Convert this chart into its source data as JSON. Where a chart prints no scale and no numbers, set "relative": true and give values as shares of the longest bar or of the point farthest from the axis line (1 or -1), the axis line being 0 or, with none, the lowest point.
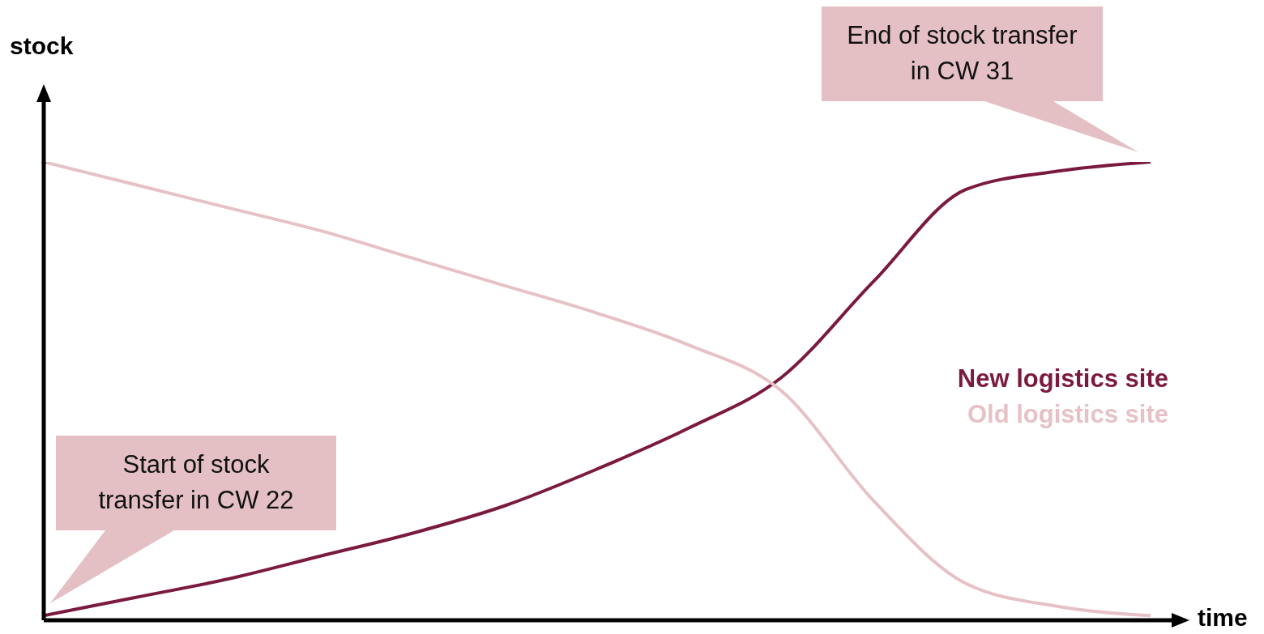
{
  "chart_data": {
    "type": "line",
    "relative": true,
    "xlabel": "time",
    "ylabel": "stock",
    "categories": [
      null,
      null,
      null,
      null,
      null,
      null,
      null,
      null,
      null,
      null,
      null,
      null,
      null
    ],
    "series": [
      {
        "name": "New logistics site",
        "color": "#7b1a3f",
        "values": [
          0.01,
          0.05,
          0.09,
          0.14,
          0.19,
          0.25,
          0.33,
          0.42,
          0.53,
          0.74,
          0.94,
          0.98,
          1.0
        ]
      },
      {
        "name": "Old logistics site",
        "color": "#e6c1c6",
        "values": [
          1.0,
          0.95,
          0.9,
          0.85,
          0.79,
          0.73,
          0.67,
          0.6,
          0.5,
          0.26,
          0.08,
          0.03,
          0.01
        ]
      }
    ],
    "annotations": [
      "Start of stock transfer in CW 22",
      "End of stock transfer in CW 31"
    ],
    "legend": "right",
    "grid": false,
    "marker": "none",
    "line_style": "solid"
  }
}
